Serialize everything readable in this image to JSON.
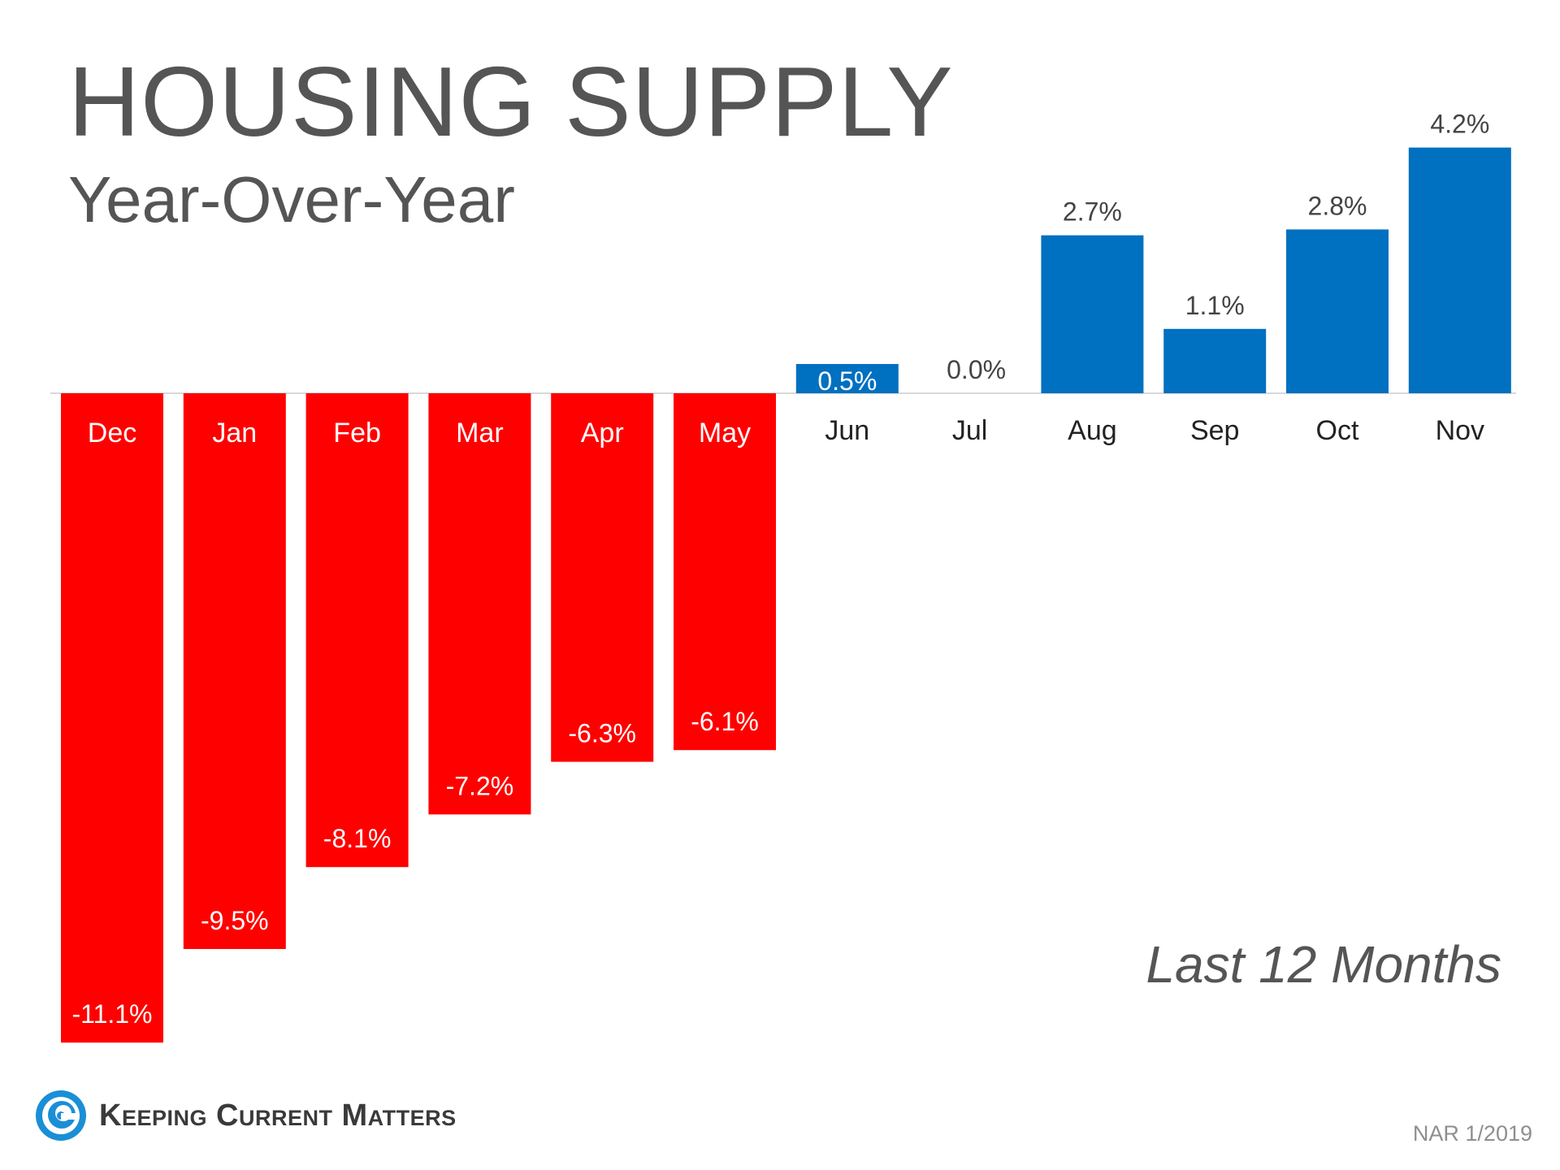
{
  "header": {
    "title": "HOUSING SUPPLY",
    "subtitle": "Year-Over-Year"
  },
  "annotation": "Last 12 Months",
  "footer": {
    "source": "NAR 1/2019",
    "logo_text": "Keeping Current Matters",
    "logo_icon": "swirl-logo-icon"
  },
  "colors": {
    "positive": "#0070C0",
    "negative": "#FF0000",
    "text_gray": "#555555"
  },
  "chart_data": {
    "type": "bar",
    "title": "HOUSING SUPPLY",
    "subtitle": "Year-Over-Year",
    "categories": [
      "Dec",
      "Jan",
      "Feb",
      "Mar",
      "Apr",
      "May",
      "Jun",
      "Jul",
      "Aug",
      "Sep",
      "Oct",
      "Nov"
    ],
    "values": [
      -11.1,
      -9.5,
      -8.1,
      -7.2,
      -6.3,
      -6.1,
      0.5,
      0.0,
      2.7,
      1.1,
      2.8,
      4.2
    ],
    "value_labels": [
      "-11.1%",
      "-9.5%",
      "-8.1%",
      "-7.2%",
      "-6.3%",
      "-6.1%",
      "0.5%",
      "0.0%",
      "2.7%",
      "1.1%",
      "2.8%",
      "4.2%"
    ],
    "unit": "%",
    "ylim": [
      -11.1,
      4.2
    ],
    "grid": false,
    "legend": "none",
    "xlabel": "",
    "ylabel": ""
  }
}
